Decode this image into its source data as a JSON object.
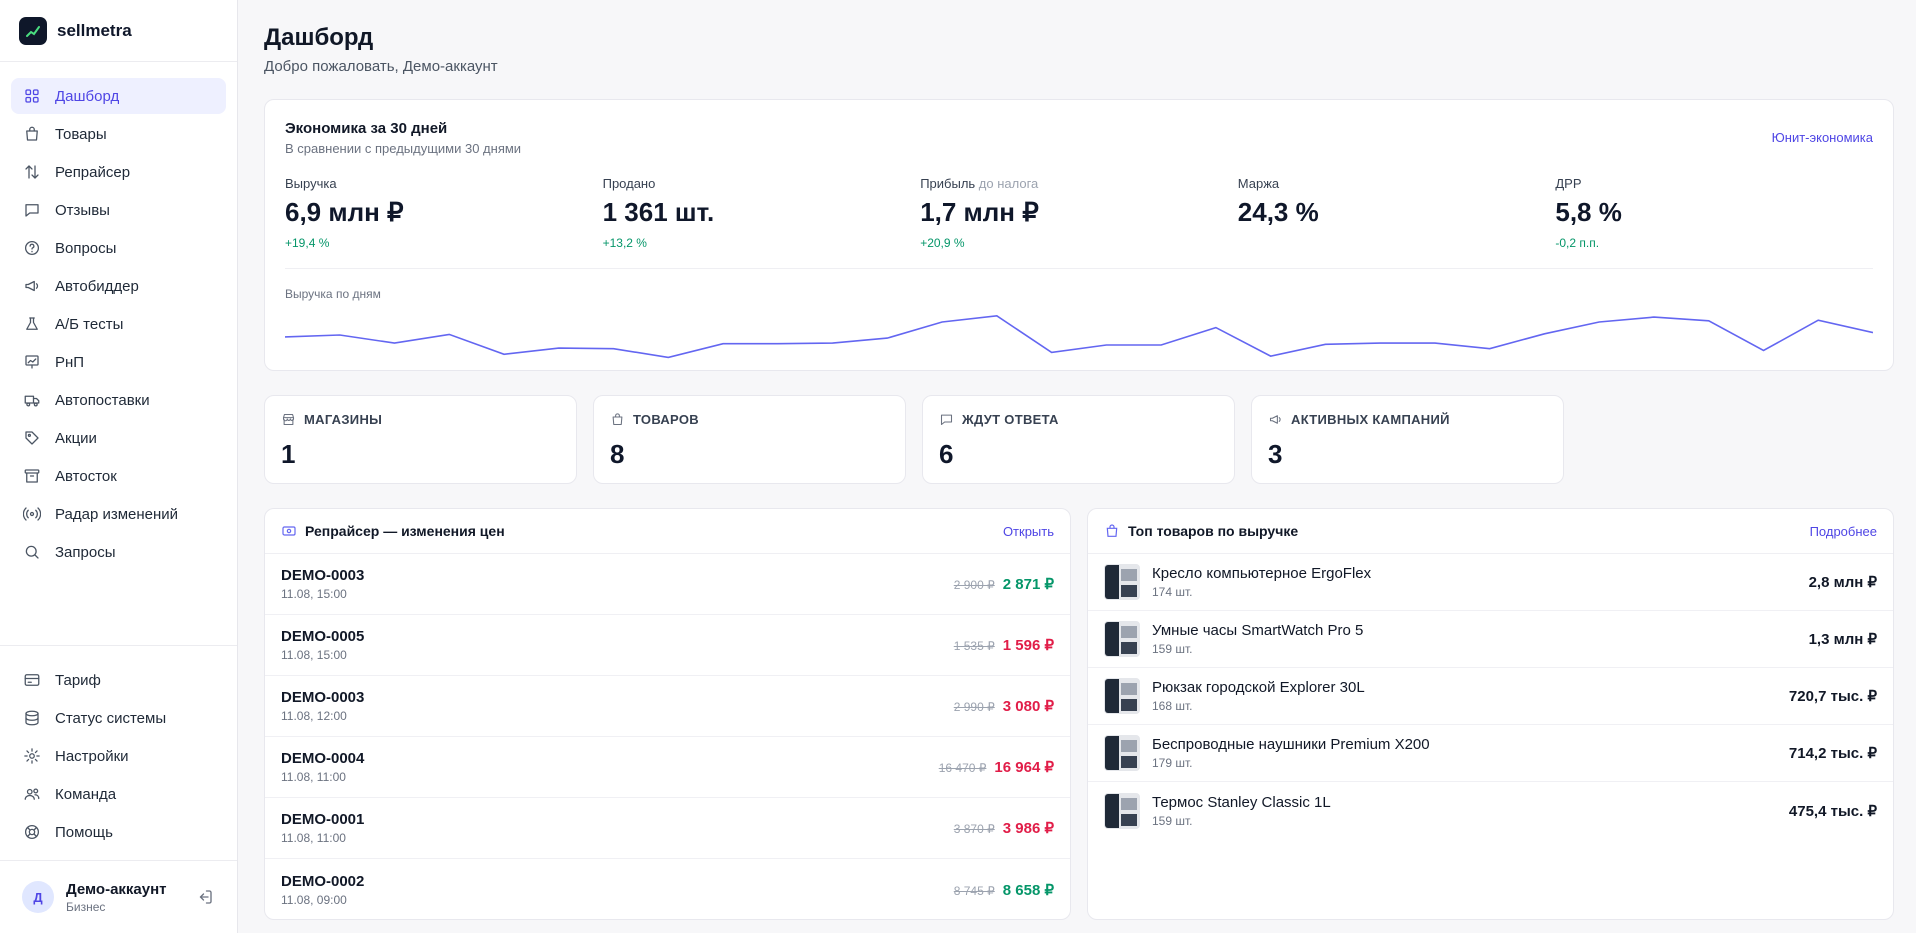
{
  "brand": {
    "name": "sellmetra"
  },
  "nav": [
    {
      "label": "Дашборд",
      "icon": "dashboard-icon",
      "active": true
    },
    {
      "label": "Товары",
      "icon": "bag-icon"
    },
    {
      "label": "Репрайсер",
      "icon": "arrows-updown-icon"
    },
    {
      "label": "Отзывы",
      "icon": "chat-icon"
    },
    {
      "label": "Вопросы",
      "icon": "question-icon"
    },
    {
      "label": "Автобиддер",
      "icon": "megaphone-icon"
    },
    {
      "label": "А/Б тесты",
      "icon": "flask-icon"
    },
    {
      "label": "РнП",
      "icon": "chart-icon"
    },
    {
      "label": "Автопоставки",
      "icon": "truck-icon"
    },
    {
      "label": "Акции",
      "icon": "tag-icon"
    },
    {
      "label": "Автосток",
      "icon": "archive-icon"
    },
    {
      "label": "Радар изменений",
      "icon": "radar-icon"
    },
    {
      "label": "Запросы",
      "icon": "search-icon"
    }
  ],
  "nav_bottom": [
    {
      "label": "Тариф",
      "icon": "card-icon"
    },
    {
      "label": "Статус системы",
      "icon": "database-icon"
    },
    {
      "label": "Настройки",
      "icon": "gear-icon"
    },
    {
      "label": "Команда",
      "icon": "users-icon"
    },
    {
      "label": "Помощь",
      "icon": "lifebuoy-icon"
    }
  ],
  "user": {
    "initial": "Д",
    "name": "Демо-аккаунт",
    "plan": "Бизнес"
  },
  "header": {
    "title": "Дашборд",
    "subtitle": "Добро пожаловать, Демо-аккаунт"
  },
  "economics": {
    "title": "Экономика за 30 дней",
    "subtitle": "В сравнении с предыдущими 30 днями",
    "link": "Юнит-экономика",
    "kpis": [
      {
        "label": "Выручка",
        "note": "",
        "value": "6,9 млн ₽",
        "delta": "+19,4 %"
      },
      {
        "label": "Продано",
        "note": "",
        "value": "1 361 шт.",
        "delta": "+13,2 %"
      },
      {
        "label": "Прибыль",
        "note": "до налога",
        "value": "1,7 млн ₽",
        "delta": "+20,9 %"
      },
      {
        "label": "Маржа",
        "note": "",
        "value": "24,3 %",
        "delta": ""
      },
      {
        "label": "ДРР",
        "note": "",
        "value": "5,8 %",
        "delta": "-0,2 п.п."
      }
    ],
    "chart_label": "Выручка по дням"
  },
  "chart_data": {
    "type": "line",
    "title": "Выручка по дням",
    "series": [
      {
        "values": [
          0.55,
          0.58,
          0.45,
          0.59,
          0.27,
          0.37,
          0.36,
          0.22,
          0.44,
          0.44,
          0.45,
          0.53,
          0.79,
          0.89,
          0.3,
          0.42,
          0.42,
          0.7,
          0.24,
          0.43,
          0.45,
          0.45,
          0.36,
          0.6,
          0.79,
          0.87,
          0.81,
          0.33,
          0.82,
          0.62
        ]
      }
    ],
    "color": "#6366f1"
  },
  "stats": [
    {
      "label": "МАГАЗИНЫ",
      "value": "1",
      "icon": "store-icon"
    },
    {
      "label": "ТОВАРОВ",
      "value": "8",
      "icon": "bag-icon"
    },
    {
      "label": "ЖДУТ ОТВЕТА",
      "value": "6",
      "icon": "chat-icon"
    },
    {
      "label": "АКТИВНЫХ КАМПАНИЙ",
      "value": "3",
      "icon": "megaphone-icon"
    }
  ],
  "repricer": {
    "title": "Репрайсер — изменения цен",
    "link": "Открыть",
    "rows": [
      {
        "sku": "DEMO-0003",
        "time": "11.08, 15:00",
        "old": "2 900 ₽",
        "new": "2 871 ₽",
        "dir": "down"
      },
      {
        "sku": "DEMO-0005",
        "time": "11.08, 15:00",
        "old": "1 535 ₽",
        "new": "1 596 ₽",
        "dir": "up"
      },
      {
        "sku": "DEMO-0003",
        "time": "11.08, 12:00",
        "old": "2 990 ₽",
        "new": "3 080 ₽",
        "dir": "up"
      },
      {
        "sku": "DEMO-0004",
        "time": "11.08, 11:00",
        "old": "16 470 ₽",
        "new": "16 964 ₽",
        "dir": "up"
      },
      {
        "sku": "DEMO-0001",
        "time": "11.08, 11:00",
        "old": "3 870 ₽",
        "new": "3 986 ₽",
        "dir": "up"
      },
      {
        "sku": "DEMO-0002",
        "time": "11.08, 09:00",
        "old": "8 745 ₽",
        "new": "8 658 ₽",
        "dir": "down"
      }
    ]
  },
  "top_products": {
    "title": "Топ товаров по выручке",
    "link": "Подробнее",
    "rows": [
      {
        "name": "Кресло компьютерное ErgoFlex",
        "qty": "174 шт.",
        "revenue": "2,8 млн ₽"
      },
      {
        "name": "Умные часы SmartWatch Pro 5",
        "qty": "159 шт.",
        "revenue": "1,3 млн ₽"
      },
      {
        "name": "Рюкзак городской Explorer 30L",
        "qty": "168 шт.",
        "revenue": "720,7 тыс. ₽"
      },
      {
        "name": "Беспроводные наушники Premium X200",
        "qty": "179 шт.",
        "revenue": "714,2 тыс. ₽"
      },
      {
        "name": "Термос Stanley Classic 1L",
        "qty": "159 шт.",
        "revenue": "475,4 тыс. ₽"
      }
    ]
  }
}
